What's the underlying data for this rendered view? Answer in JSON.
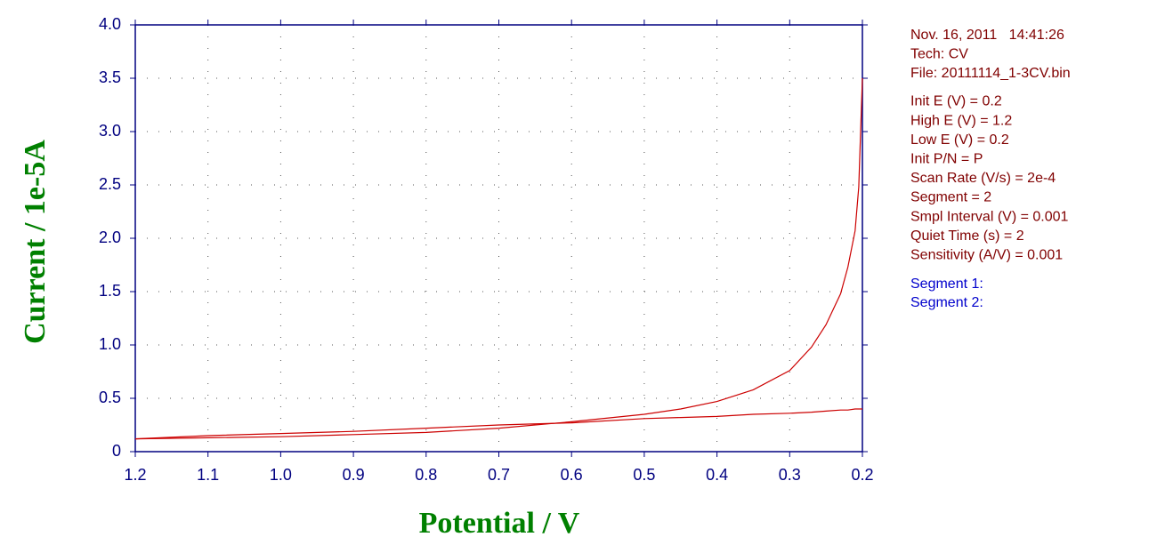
{
  "chart_data": {
    "type": "line",
    "xlabel": "Potential / V",
    "ylabel": "Current / 1e-5A",
    "x": [
      0.2,
      0.205,
      0.21,
      0.22,
      0.23,
      0.25,
      0.27,
      0.3,
      0.35,
      0.4,
      0.45,
      0.5,
      0.6,
      0.7,
      0.8,
      0.9,
      1.0,
      1.1,
      1.2
    ],
    "series": [
      {
        "color": "#cc0000",
        "values": [
          3.5,
          2.48,
          2.07,
          1.73,
          1.48,
          1.19,
          0.98,
          0.76,
          0.58,
          0.47,
          0.4,
          0.35,
          0.28,
          0.22,
          0.18,
          0.16,
          0.14,
          0.13,
          0.12
        ]
      },
      {
        "color": "#cc0000",
        "values": [
          0.4,
          0.4,
          0.4,
          0.39,
          0.39,
          0.38,
          0.37,
          0.36,
          0.35,
          0.33,
          0.32,
          0.31,
          0.27,
          0.25,
          0.22,
          0.19,
          0.17,
          0.15,
          0.12
        ]
      }
    ],
    "xlim": [
      1.2,
      0.2
    ],
    "ylim": [
      0,
      4.0
    ],
    "xticks": [
      1.2,
      1.1,
      {
        "value": 1.0,
        "label": "1.0"
      },
      0.9,
      0.8,
      0.7,
      0.6,
      0.5,
      0.4,
      0.3,
      0.2
    ],
    "yticks": [
      0,
      0.5,
      {
        "value": 1.0,
        "label": "1.0"
      },
      1.5,
      {
        "value": 2.0,
        "label": "2.0"
      },
      2.5,
      {
        "value": 3.0,
        "label": "3.0"
      },
      3.5,
      {
        "value": 4.0,
        "label": "4.0"
      }
    ],
    "grid": true,
    "annotations": {
      "info": [
        "Nov. 16, 2011   14:41:26",
        "Tech: CV",
        "File: 20111114_1-3CV.bin"
      ],
      "params": [
        "Init E (V) = 0.2",
        "High E (V) = 1.2",
        "Low E (V) = 0.2",
        "Init P/N = P",
        "Scan Rate (V/s) = 2e-4",
        "Segment = 2",
        "Smpl Interval (V) = 0.001",
        "Quiet Time (s) = 2",
        "Sensitivity (A/V) = 0.001"
      ],
      "segments": [
        "Segment 1:",
        "Segment 2:"
      ]
    }
  }
}
